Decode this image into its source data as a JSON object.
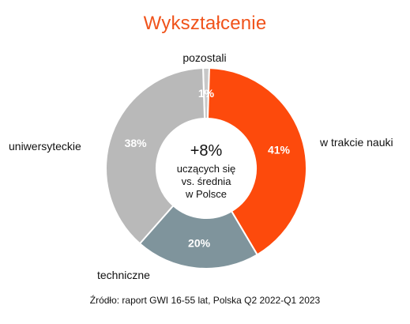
{
  "chart_data": {
    "type": "pie",
    "title": "Wykształcenie",
    "categories": [
      "pozostali",
      "w trakcie nauki",
      "techniczne",
      "uniwersyteckie"
    ],
    "values": [
      1,
      41,
      20,
      38
    ],
    "value_labels": [
      "1%",
      "41%",
      "20%",
      "38%"
    ],
    "colors": [
      "#c8c8c8",
      "#fd4a0c",
      "#7f949c",
      "#b9b9b9"
    ],
    "center_text": {
      "headline": "+8%",
      "lines": [
        "uczących się",
        "vs. średnia",
        "w Polsce"
      ]
    },
    "source": "Źródło: raport GWI 16-55 lat, Polska Q2 2022-Q1 2023"
  }
}
